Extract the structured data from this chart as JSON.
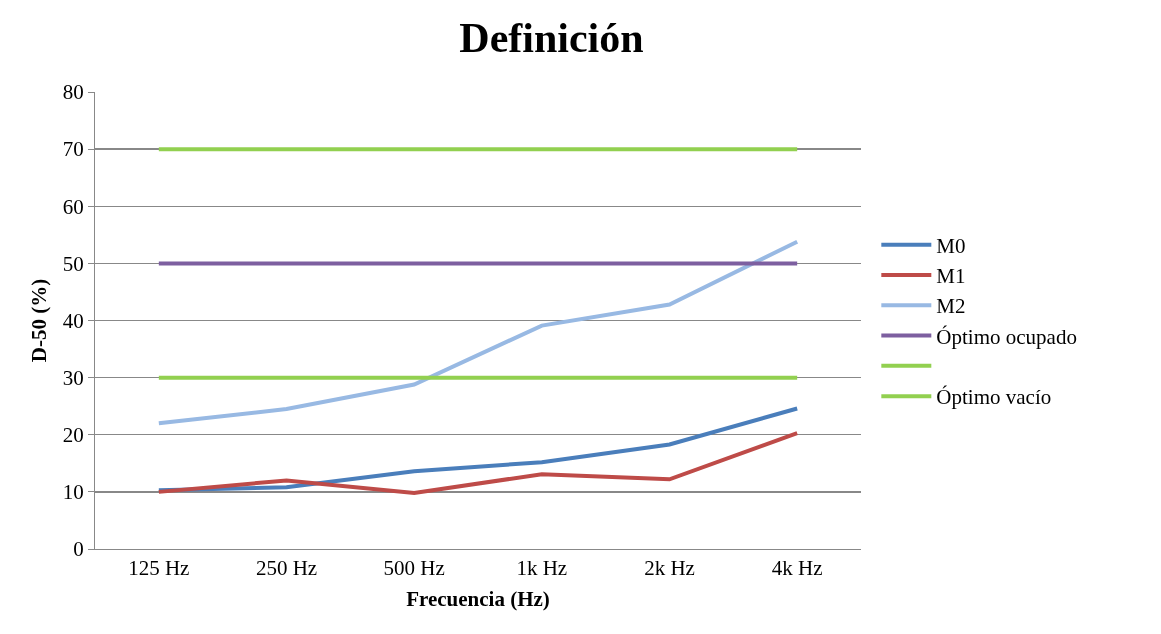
{
  "chart_data": {
    "type": "line",
    "title": "Definición",
    "xlabel": "Frecuencia (Hz)",
    "ylabel": "D-50 (%)",
    "categories": [
      "125 Hz",
      "250 Hz",
      "500 Hz",
      "1k Hz",
      "2k Hz",
      "4k Hz"
    ],
    "series": [
      {
        "name": "M0",
        "color": "#4a7ebb",
        "values": [
          10.3,
          10.8,
          13.6,
          15.2,
          18.3,
          24.6
        ]
      },
      {
        "name": "M1",
        "color": "#be4b48",
        "values": [
          10.0,
          12.0,
          9.8,
          13.1,
          12.2,
          20.3
        ]
      },
      {
        "name": "M2",
        "color": "#98b9e3",
        "values": [
          22.0,
          24.5,
          28.8,
          39.1,
          42.8,
          53.8
        ]
      },
      {
        "name": "Óptimo ocupado",
        "color": "#7d5fa0",
        "values": [
          50,
          50,
          50,
          50,
          50,
          50
        ]
      },
      {
        "color": "#92d050",
        "values": [
          30,
          30,
          30,
          30,
          30,
          30
        ]
      },
      {
        "name": "Óptimo vacío",
        "color": "#92d050",
        "values": [
          70,
          70,
          70,
          70,
          70,
          70
        ]
      }
    ],
    "ylim": [
      0,
      80
    ],
    "yticks": [
      0,
      10,
      20,
      30,
      40,
      50,
      60,
      70,
      80
    ],
    "grid": "y",
    "legend": "right",
    "marker": "none",
    "line_style": "solid"
  }
}
